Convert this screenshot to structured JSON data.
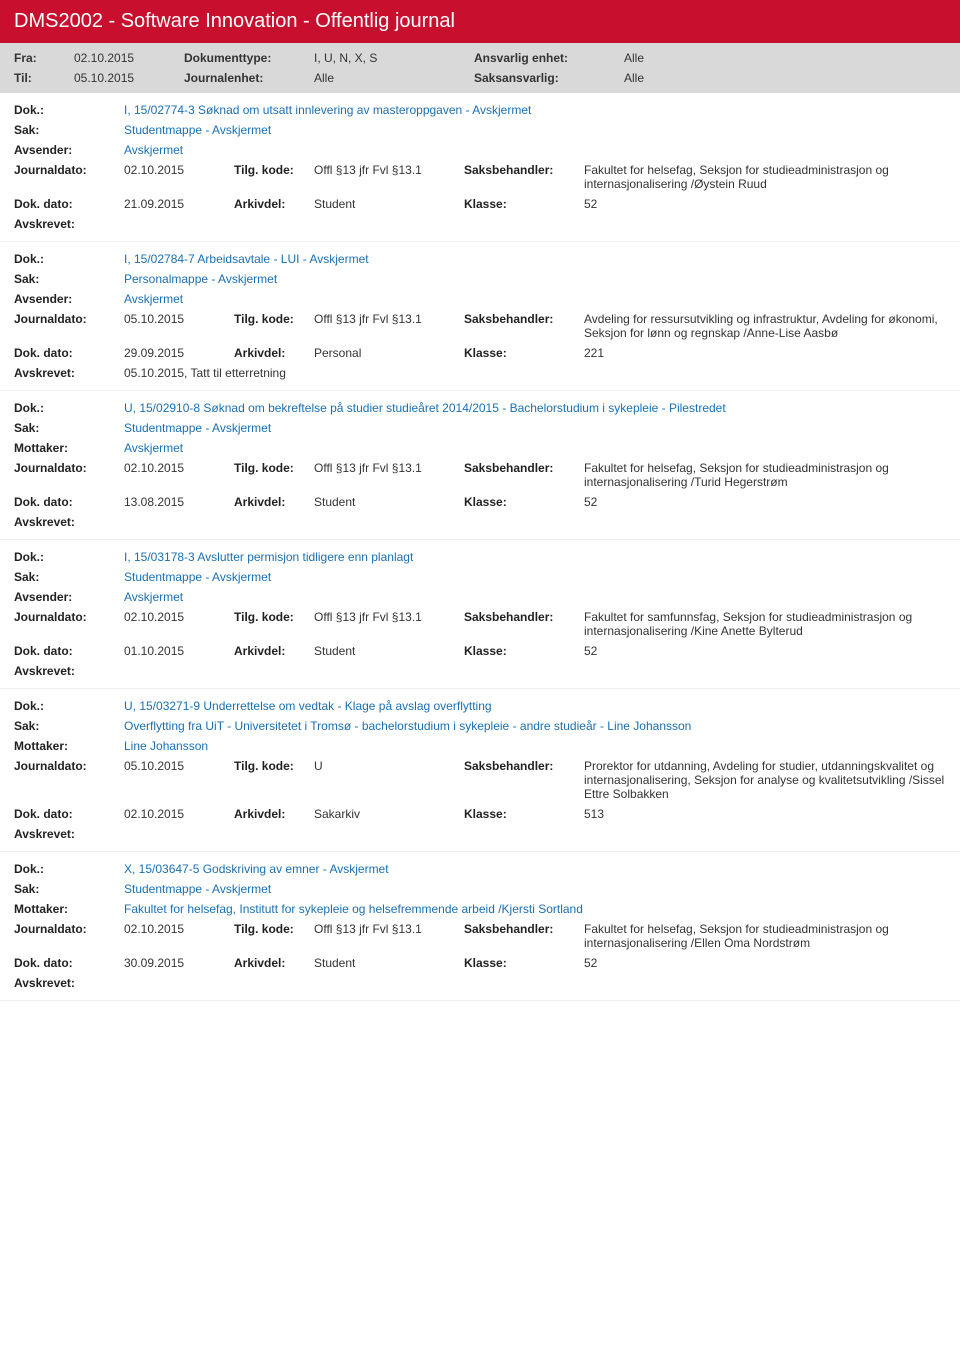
{
  "header": {
    "title": "DMS2002 - Software Innovation - Offentlig journal"
  },
  "filter": {
    "fra_label": "Fra:",
    "fra_value": "02.10.2015",
    "til_label": "Til:",
    "til_value": "05.10.2015",
    "doktype_label": "Dokumenttype:",
    "doktype_value": "I, U, N, X, S",
    "journalenhet_label": "Journalenhet:",
    "journalenhet_value": "Alle",
    "ansvarlig_label": "Ansvarlig enhet:",
    "ansvarlig_value": "Alle",
    "saksansvarlig_label": "Saksansvarlig:",
    "saksansvarlig_value": "Alle"
  },
  "labels": {
    "dok": "Dok.:",
    "sak": "Sak:",
    "avsender": "Avsender:",
    "mottaker": "Mottaker:",
    "journaldato": "Journaldato:",
    "tilg": "Tilg. kode:",
    "saksbeh": "Saksbehandler:",
    "dokdato": "Dok. dato:",
    "arkivdel": "Arkivdel:",
    "klasse": "Klasse:",
    "avskrevet": "Avskrevet:"
  },
  "entries": [
    {
      "dok": "I, 15/02774-3 Søknad om utsatt innlevering av masteroppgaven - Avskjermet",
      "sak": "Studentmappe - Avskjermet",
      "party_label": "Avsender:",
      "party": "Avskjermet",
      "journaldato": "02.10.2015",
      "tilg": "Offl §13 jfr Fvl §13.1",
      "saksbeh": "Fakultet for helsefag, Seksjon for studieadministrasjon og internasjonalisering /Øystein Ruud",
      "dokdato": "21.09.2015",
      "arkivdel": "Student",
      "klasse": "52",
      "avskrevet": ""
    },
    {
      "dok": "I, 15/02784-7 Arbeidsavtale - LUI - Avskjermet",
      "sak": "Personalmappe - Avskjermet",
      "party_label": "Avsender:",
      "party": "Avskjermet",
      "journaldato": "05.10.2015",
      "tilg": "Offl §13 jfr Fvl §13.1",
      "saksbeh": "Avdeling for ressursutvikling og infrastruktur, Avdeling for økonomi, Seksjon for lønn og regnskap /Anne-Lise Aasbø",
      "dokdato": "29.09.2015",
      "arkivdel": "Personal",
      "klasse": "221",
      "avskrevet": "05.10.2015, Tatt til etterretning"
    },
    {
      "dok": "U, 15/02910-8 Søknad om bekreftelse på studier studieåret 2014/2015 - Bachelorstudium i sykepleie - Pilestredet",
      "sak": "Studentmappe - Avskjermet",
      "party_label": "Mottaker:",
      "party": "Avskjermet",
      "journaldato": "02.10.2015",
      "tilg": "Offl §13 jfr Fvl §13.1",
      "saksbeh": "Fakultet for helsefag, Seksjon for studieadministrasjon og internasjonalisering /Turid Hegerstrøm",
      "dokdato": "13.08.2015",
      "arkivdel": "Student",
      "klasse": "52",
      "avskrevet": ""
    },
    {
      "dok": "I, 15/03178-3 Avslutter permisjon tidligere enn planlagt",
      "sak": "Studentmappe - Avskjermet",
      "party_label": "Avsender:",
      "party": "Avskjermet",
      "journaldato": "02.10.2015",
      "tilg": "Offl §13 jfr Fvl §13.1",
      "saksbeh": "Fakultet for samfunnsfag, Seksjon for studieadministrasjon og internasjonalisering /Kine Anette Bylterud",
      "dokdato": "01.10.2015",
      "arkivdel": "Student",
      "klasse": "52",
      "avskrevet": ""
    },
    {
      "dok": "U, 15/03271-9 Underrettelse om vedtak - Klage på avslag overflytting",
      "sak": "Overflytting fra UiT - Universitetet i Tromsø - bachelorstudium i sykepleie - andre studieår - Line Johansson",
      "party_label": "Mottaker:",
      "party": "Line Johansson",
      "journaldato": "05.10.2015",
      "tilg": "U",
      "saksbeh": "Prorektor for utdanning, Avdeling for studier, utdanningskvalitet og internasjonalisering, Seksjon for analyse og kvalitetsutvikling /Sissel Ettre Solbakken",
      "dokdato": "02.10.2015",
      "arkivdel": "Sakarkiv",
      "klasse": "513",
      "avskrevet": ""
    },
    {
      "dok": "X, 15/03647-5 Godskriving av emner - Avskjermet",
      "sak": "Studentmappe - Avskjermet",
      "party_label": "Mottaker:",
      "party": "Fakultet for helsefag, Institutt for sykepleie og helsefremmende arbeid /Kjersti Sortland",
      "journaldato": "02.10.2015",
      "tilg": "Offl §13 jfr Fvl §13.1",
      "saksbeh": "Fakultet for helsefag, Seksjon for studieadministrasjon og internasjonalisering /Ellen Oma Nordstrøm",
      "dokdato": "30.09.2015",
      "arkivdel": "Student",
      "klasse": "52",
      "avskrevet": ""
    }
  ]
}
